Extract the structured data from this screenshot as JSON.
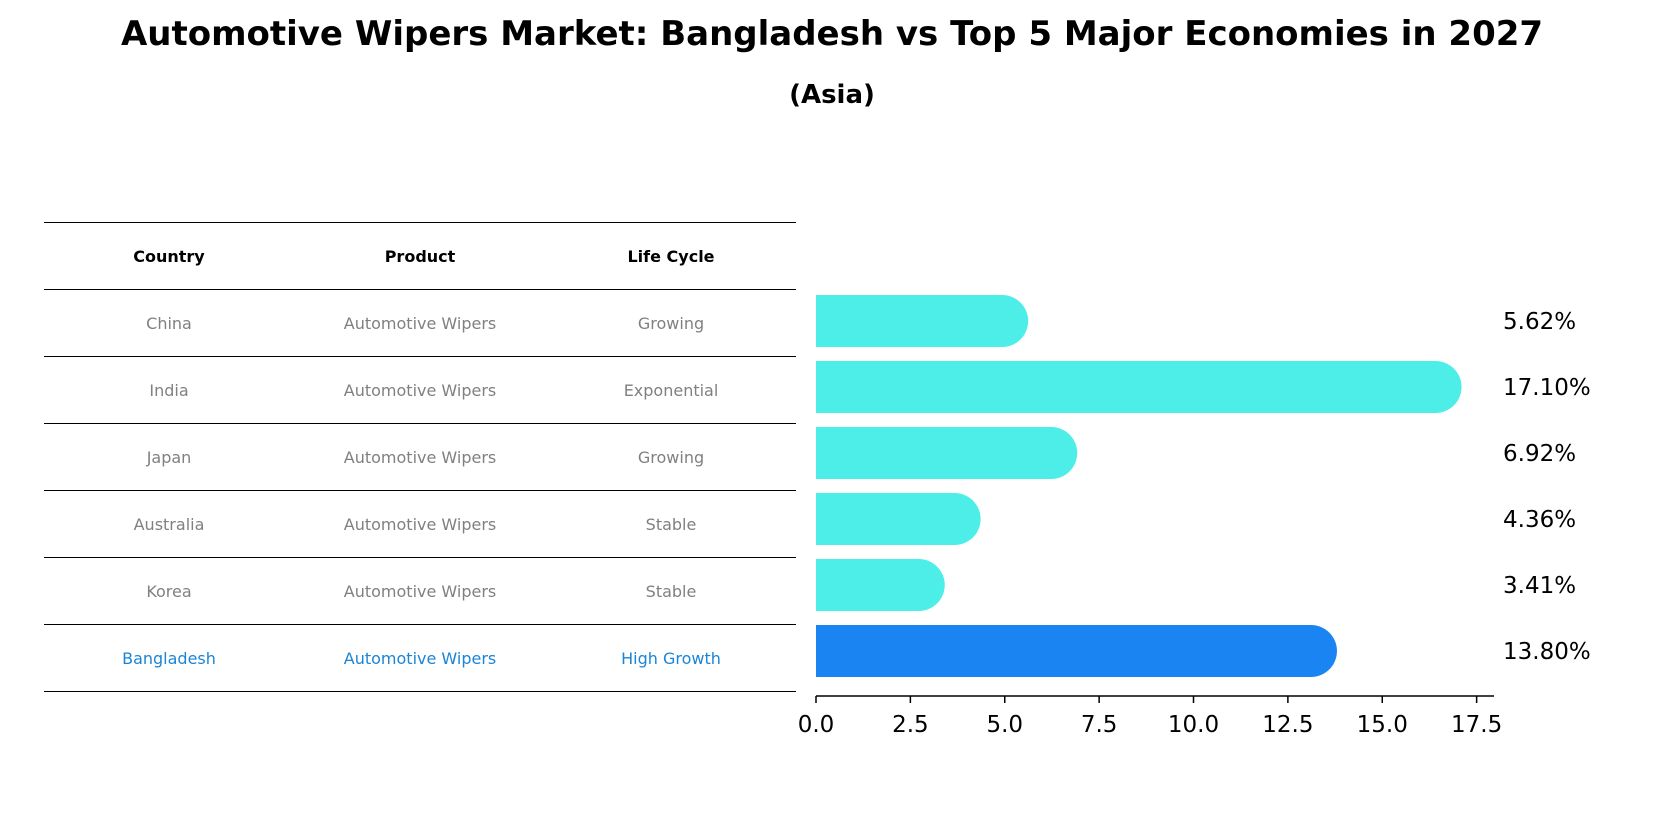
{
  "title": "Automotive Wipers Market: Bangladesh vs Top 5 Major Economies in 2027",
  "subtitle": "(Asia)",
  "table": {
    "headers": [
      "Country",
      "Product",
      "Life Cycle"
    ],
    "rows": [
      [
        "China",
        "Automotive Wipers",
        "Growing"
      ],
      [
        "India",
        "Automotive Wipers",
        "Exponential"
      ],
      [
        "Japan",
        "Automotive Wipers",
        "Growing"
      ],
      [
        "Australia",
        "Automotive Wipers",
        "Stable"
      ],
      [
        "Korea",
        "Automotive Wipers",
        "Stable"
      ],
      [
        "Bangladesh",
        "Automotive Wipers",
        "High Growth"
      ]
    ]
  },
  "colors": {
    "bar": "#4dede8",
    "highlight": "#1a84f2",
    "highlight_text": "#1a85d6",
    "muted_text": "#808080"
  },
  "chart_data": {
    "type": "bar",
    "orientation": "horizontal",
    "categories": [
      "China",
      "India",
      "Japan",
      "Australia",
      "Korea",
      "Bangladesh"
    ],
    "values": [
      5.62,
      17.1,
      6.92,
      4.36,
      3.41,
      13.8
    ],
    "value_labels": [
      "5.62%",
      "17.10%",
      "6.92%",
      "4.36%",
      "3.41%",
      "13.80%"
    ],
    "highlight": "Bangladesh",
    "xlim": [
      0,
      17.96
    ],
    "xticks": [
      0.0,
      2.5,
      5.0,
      7.5,
      10.0,
      12.5,
      15.0,
      17.5
    ],
    "xtick_labels": [
      "0.0",
      "2.5",
      "5.0",
      "7.5",
      "10.0",
      "12.5",
      "15.0",
      "17.5"
    ],
    "xlabel": "",
    "ylabel": ""
  }
}
